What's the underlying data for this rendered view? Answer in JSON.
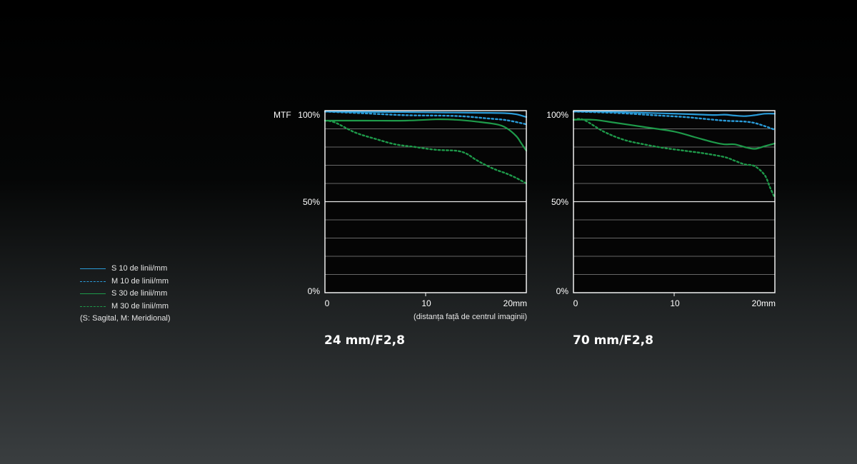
{
  "legend": {
    "items": [
      {
        "label": "S  10 de linii/mm",
        "color": "#2a9bd8",
        "dash": "solid"
      },
      {
        "label": "M 10 de linii/mm",
        "color": "#2a9bd8",
        "dash": "dashed"
      },
      {
        "label": "S  30 de linii/mm",
        "color": "#1e9a4a",
        "dash": "solid"
      },
      {
        "label": "M 30 de linii/mm",
        "color": "#1e9a4a",
        "dash": "dashed"
      }
    ],
    "note": "(S: Sagital, M: Meridional)"
  },
  "chart_data": [
    {
      "type": "line",
      "caption": "24 mm/F2,8",
      "ylabel": "MTF",
      "xlabel": "(distanța față de centrul imaginii)",
      "y_ticks": [
        "100%",
        "50%",
        "0%"
      ],
      "x_ticks": [
        "0",
        "10",
        "20mm"
      ],
      "xlim": [
        0,
        20
      ],
      "ylim": [
        0,
        100
      ],
      "grid": true,
      "series": [
        {
          "name": "S 10 de linii/mm",
          "color": "#2a9bd8",
          "style": "solid",
          "x": [
            0,
            4,
            8,
            12,
            16,
            18,
            19,
            20
          ],
          "y": [
            99.5,
            99.3,
            99.2,
            99.0,
            98.8,
            98.6,
            98.0,
            96.5
          ]
        },
        {
          "name": "M 10 de linii/mm",
          "color": "#2a9bd8",
          "style": "dashed",
          "x": [
            0,
            4,
            8,
            12,
            14,
            16,
            18,
            20
          ],
          "y": [
            99.5,
            98.5,
            97.5,
            97.2,
            96.8,
            95.8,
            94.8,
            92.5
          ]
        },
        {
          "name": "S 30 de linii/mm",
          "color": "#1e9a4a",
          "style": "solid",
          "x": [
            0,
            4,
            8,
            11,
            13,
            15,
            17,
            18,
            19,
            19.5,
            20
          ],
          "y": [
            94.5,
            94.5,
            94.5,
            95.2,
            95.0,
            94.0,
            92.5,
            90.5,
            86.0,
            82.0,
            78.0
          ]
        },
        {
          "name": "M 30 de linii/mm",
          "color": "#1e9a4a",
          "style": "dashed",
          "x": [
            0,
            1,
            3,
            5,
            7,
            9,
            11,
            13,
            14,
            15,
            16,
            17,
            18,
            19,
            20
          ],
          "y": [
            94.5,
            93.5,
            88.0,
            84.5,
            81.5,
            80.0,
            78.5,
            78.0,
            76.5,
            73.0,
            70.0,
            67.5,
            65.5,
            63.0,
            60.0
          ]
        }
      ]
    },
    {
      "type": "line",
      "caption": "70 mm/F2,8",
      "ylabel": "",
      "xlabel": "",
      "y_ticks": [
        "100%",
        "50%",
        "0%"
      ],
      "x_ticks": [
        "0",
        "10",
        "20mm"
      ],
      "xlim": [
        0,
        20
      ],
      "ylim": [
        0,
        100
      ],
      "grid": true,
      "series": [
        {
          "name": "S 10 de linii/mm",
          "color": "#2a9bd8",
          "style": "solid",
          "x": [
            0,
            3,
            6,
            9,
            12,
            14,
            15,
            16,
            17,
            18,
            19,
            20
          ],
          "y": [
            99.5,
            99.5,
            99.0,
            98.5,
            98.0,
            97.6,
            97.8,
            97.3,
            97.0,
            97.5,
            98.3,
            98.3
          ]
        },
        {
          "name": "M 10 de linii/mm",
          "color": "#2a9bd8",
          "style": "dashed",
          "x": [
            0,
            4,
            8,
            11,
            13,
            15,
            17,
            18,
            19,
            20
          ],
          "y": [
            99.5,
            98.8,
            97.5,
            96.5,
            95.5,
            94.5,
            94.0,
            93.2,
            91.5,
            89.5
          ]
        },
        {
          "name": "S 30 de linii/mm",
          "color": "#1e9a4a",
          "style": "solid",
          "x": [
            0,
            2,
            4,
            7,
            10,
            12,
            14,
            15,
            16,
            17,
            18,
            19,
            20
          ],
          "y": [
            95.0,
            95.0,
            93.5,
            91.0,
            88.5,
            85.5,
            82.5,
            81.5,
            81.5,
            80.0,
            79.0,
            80.5,
            82.0
          ]
        },
        {
          "name": "M 30 de linii/mm",
          "color": "#1e9a4a",
          "style": "dashed",
          "x": [
            0,
            1,
            3,
            5,
            7,
            9,
            11,
            13,
            15,
            16,
            17,
            18,
            19,
            19.5,
            20
          ],
          "y": [
            95.0,
            95.0,
            88.5,
            84.0,
            81.5,
            79.5,
            78.0,
            76.5,
            74.5,
            72.5,
            70.5,
            69.5,
            64.5,
            58.0,
            52.0
          ]
        }
      ]
    }
  ]
}
